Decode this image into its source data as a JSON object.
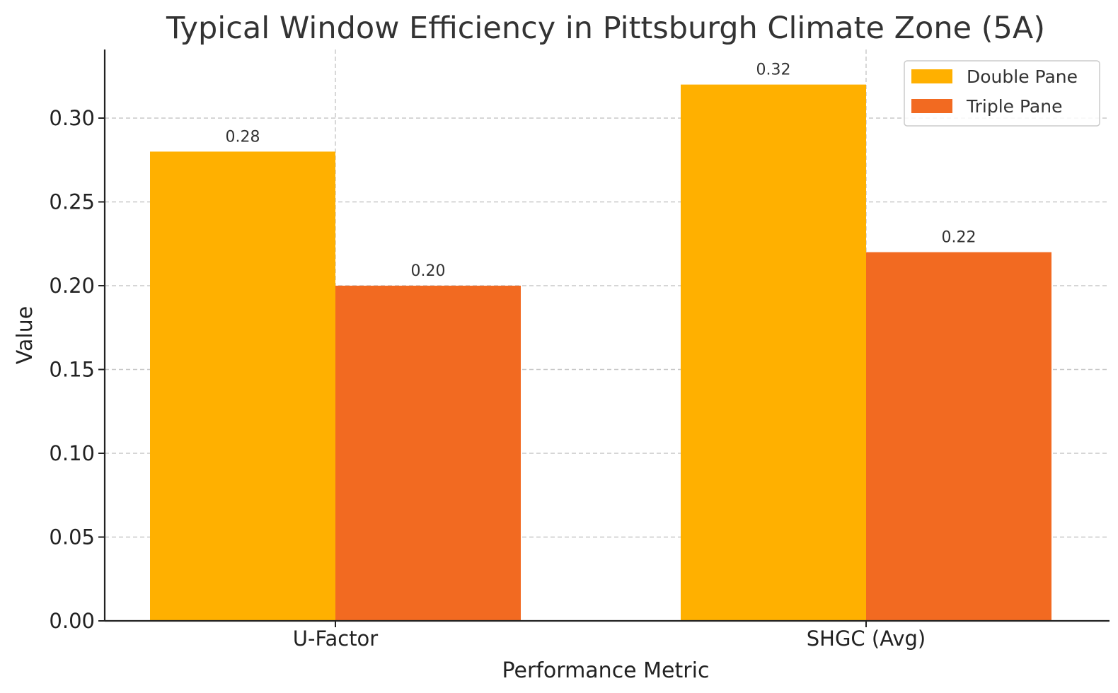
{
  "chart_data": {
    "type": "bar",
    "title": "Typical Window Efficiency in Pittsburgh Climate Zone (5A)",
    "xlabel": "Performance Metric",
    "ylabel": "Value",
    "categories": [
      "U-Factor",
      "SHGC (Avg)"
    ],
    "series": [
      {
        "name": "Double Pane",
        "color": "#FFB000",
        "values": [
          0.28,
          0.32
        ],
        "labels": [
          "0.28",
          "0.32"
        ]
      },
      {
        "name": "Triple Pane",
        "color": "#F26A21",
        "values": [
          0.2,
          0.22
        ],
        "labels": [
          "0.20",
          "0.22"
        ]
      }
    ],
    "ylim": [
      0,
      0.336
    ],
    "yticks": [
      0.0,
      0.05,
      0.1,
      0.15,
      0.2,
      0.25,
      0.3
    ],
    "ytick_labels": [
      "0.00",
      "0.05",
      "0.10",
      "0.15",
      "0.20",
      "0.25",
      "0.30"
    ],
    "grid": true,
    "legend_position": "top-right"
  }
}
